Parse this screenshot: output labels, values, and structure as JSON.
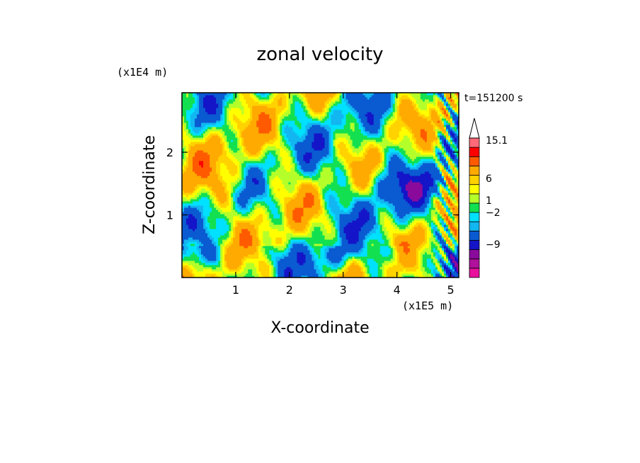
{
  "chart_data": {
    "type": "heatmap",
    "title": "zonal velocity",
    "xlabel": "X-coordinate",
    "ylabel": "Z-coordinate",
    "x_scale_label": "(x1E5 m)",
    "y_scale_label": "(x1E4 m)",
    "time_label": "t=151200 s",
    "xlim": [
      0,
      5.15
    ],
    "ylim": [
      0,
      2.95
    ],
    "x_ticks": [
      "1",
      "2",
      "3",
      "4",
      "5"
    ],
    "y_ticks": [
      "1",
      "2"
    ],
    "colorbar": {
      "labels": [
        "15.1",
        "6",
        "1",
        "−2",
        "−9"
      ],
      "levels": [
        -15,
        -12,
        -9,
        -6,
        -3,
        -2,
        -1,
        0,
        1,
        2,
        3,
        6,
        9,
        12,
        15.1
      ],
      "colors": [
        "#e8109c",
        "#b0109c",
        "#8a0a9c",
        "#1414c8",
        "#0a5ad2",
        "#12b6f0",
        "#00e0ff",
        "#12e050",
        "#b4ff2a",
        "#ffff00",
        "#ffd200",
        "#ffaa00",
        "#ff5a00",
        "#ff0000",
        "#ff6a78",
        "#ffc8c8"
      ]
    }
  }
}
